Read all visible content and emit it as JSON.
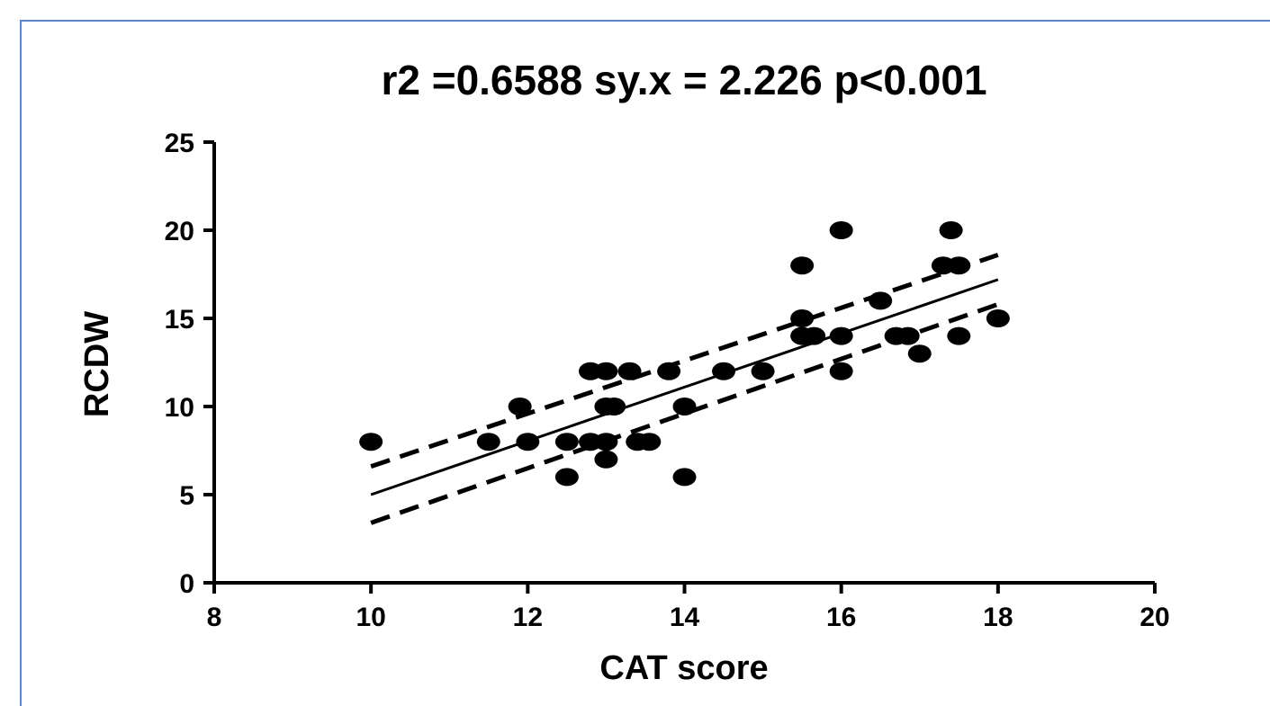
{
  "chart_data": {
    "type": "scatter",
    "title": "r2 =0.6588 sy.x = 2.226  p<0.001",
    "xlabel": "CAT score",
    "ylabel": "RCDW",
    "xlim": [
      8,
      20
    ],
    "ylim": [
      0,
      25
    ],
    "xticks": [
      8,
      10,
      12,
      14,
      16,
      18,
      20
    ],
    "yticks": [
      0,
      5,
      10,
      15,
      20,
      25
    ],
    "grid": false,
    "legend": "none",
    "points": [
      {
        "x": 10,
        "y": 8
      },
      {
        "x": 11.5,
        "y": 8
      },
      {
        "x": 11.9,
        "y": 10
      },
      {
        "x": 12,
        "y": 8
      },
      {
        "x": 12.5,
        "y": 6
      },
      {
        "x": 12.5,
        "y": 8
      },
      {
        "x": 12.8,
        "y": 12
      },
      {
        "x": 12.8,
        "y": 8
      },
      {
        "x": 13,
        "y": 12
      },
      {
        "x": 13,
        "y": 10
      },
      {
        "x": 13,
        "y": 8
      },
      {
        "x": 13,
        "y": 7
      },
      {
        "x": 13.1,
        "y": 10
      },
      {
        "x": 13.3,
        "y": 12
      },
      {
        "x": 13.4,
        "y": 8
      },
      {
        "x": 13.55,
        "y": 8
      },
      {
        "x": 13.8,
        "y": 12
      },
      {
        "x": 14,
        "y": 10
      },
      {
        "x": 14,
        "y": 6
      },
      {
        "x": 14.5,
        "y": 12
      },
      {
        "x": 15,
        "y": 12
      },
      {
        "x": 15.5,
        "y": 18
      },
      {
        "x": 15.5,
        "y": 15
      },
      {
        "x": 15.5,
        "y": 14
      },
      {
        "x": 15.65,
        "y": 14
      },
      {
        "x": 16,
        "y": 20
      },
      {
        "x": 16,
        "y": 14
      },
      {
        "x": 16,
        "y": 12
      },
      {
        "x": 16.5,
        "y": 16
      },
      {
        "x": 16.7,
        "y": 14
      },
      {
        "x": 16.85,
        "y": 14
      },
      {
        "x": 17,
        "y": 13
      },
      {
        "x": 17.3,
        "y": 18
      },
      {
        "x": 17.4,
        "y": 20
      },
      {
        "x": 17.5,
        "y": 18
      },
      {
        "x": 17.5,
        "y": 14
      },
      {
        "x": 18,
        "y": 15
      }
    ],
    "regression": {
      "x": [
        10,
        18
      ],
      "y": [
        5.0,
        17.2
      ]
    },
    "confidence_band": {
      "x": [
        10,
        18
      ],
      "upper": [
        6.6,
        18.6
      ],
      "lower": [
        3.4,
        15.8
      ]
    },
    "colors": {
      "points": "#000000",
      "lines": "#000000",
      "frame": "#5b85c4"
    }
  }
}
